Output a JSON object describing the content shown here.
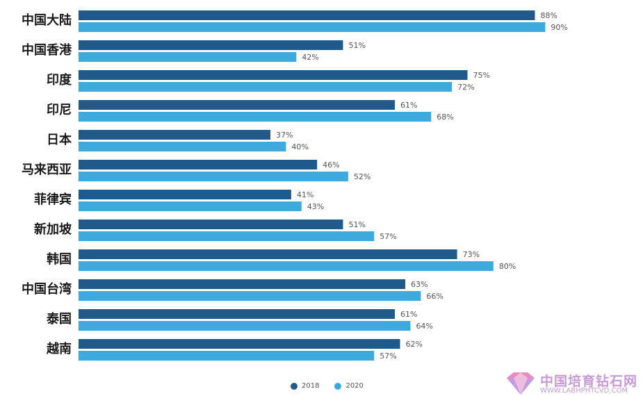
{
  "chart_data": {
    "type": "bar",
    "orientation": "horizontal",
    "categories": [
      "中国大陆",
      "中国香港",
      "印度",
      "印尼",
      "日本",
      "马来西亚",
      "菲律宾",
      "新加坡",
      "韩国",
      "中国台湾",
      "泰国",
      "越南"
    ],
    "series": [
      {
        "name": "2018",
        "color": "#1f5a8a",
        "values": [
          88,
          51,
          75,
          61,
          37,
          46,
          41,
          51,
          73,
          63,
          61,
          62
        ]
      },
      {
        "name": "2020",
        "color": "#3ea9dc",
        "values": [
          90,
          42,
          72,
          68,
          40,
          52,
          43,
          57,
          80,
          66,
          64,
          57
        ]
      }
    ],
    "value_suffix": "%",
    "xlim": [
      0,
      100
    ],
    "grid": false,
    "legend_position": "bottom"
  },
  "watermark": {
    "title": "中国培育钻石网",
    "subtitle": "WWW.LABHPHTCVD.COM"
  }
}
